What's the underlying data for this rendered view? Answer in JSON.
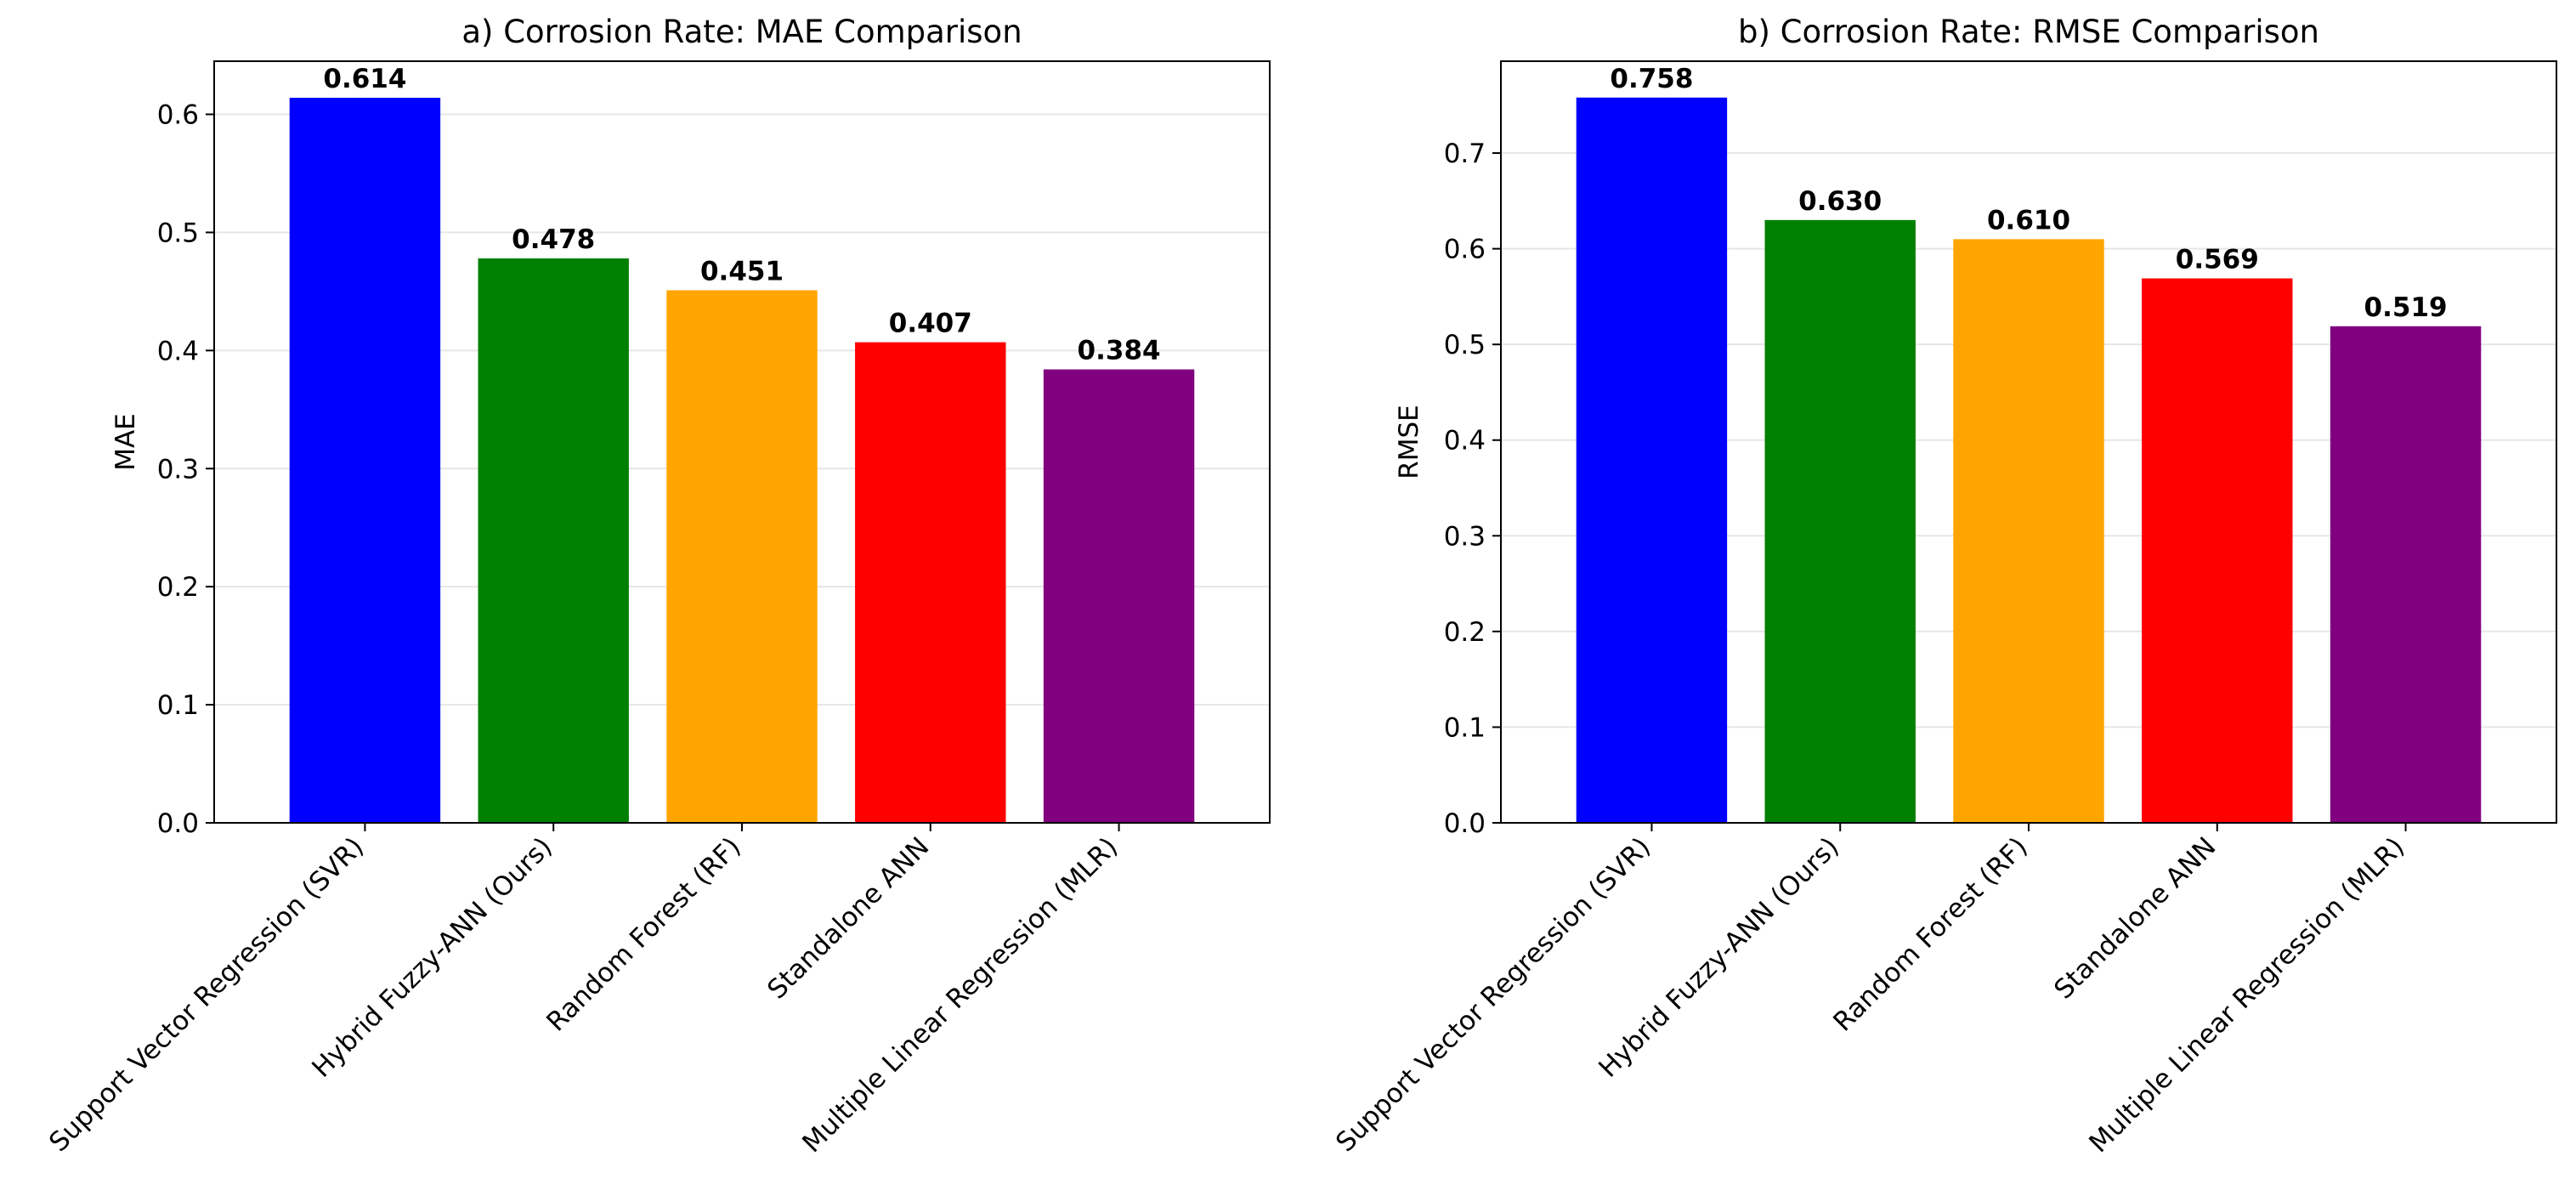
{
  "chart_data": [
    {
      "type": "bar",
      "title": "a) Corrosion Rate: MAE Comparison",
      "xlabel": "",
      "ylabel": "MAE",
      "ylim": [
        0,
        0.645
      ],
      "yticks": [
        0.0,
        0.1,
        0.2,
        0.3,
        0.4,
        0.5,
        0.6
      ],
      "ytick_labels": [
        "0.0",
        "0.1",
        "0.2",
        "0.3",
        "0.4",
        "0.5",
        "0.6"
      ],
      "grid": "y",
      "categories": [
        "Support Vector Regression (SVR)",
        "Hybrid Fuzzy-ANN (Ours)",
        "Random Forest (RF)",
        "Standalone ANN",
        "Multiple Linear Regression (MLR)"
      ],
      "values": [
        0.614,
        0.478,
        0.451,
        0.407,
        0.384
      ],
      "value_labels": [
        "0.614",
        "0.478",
        "0.451",
        "0.407",
        "0.384"
      ],
      "colors": [
        "#0000ff",
        "#008000",
        "#ffa500",
        "#ff0000",
        "#800080"
      ]
    },
    {
      "type": "bar",
      "title": "b) Corrosion Rate: RMSE Comparison",
      "xlabel": "",
      "ylabel": "RMSE",
      "ylim": [
        0,
        0.796
      ],
      "yticks": [
        0.0,
        0.1,
        0.2,
        0.3,
        0.4,
        0.5,
        0.6,
        0.7
      ],
      "ytick_labels": [
        "0.0",
        "0.1",
        "0.2",
        "0.3",
        "0.4",
        "0.5",
        "0.6",
        "0.7"
      ],
      "grid": "y",
      "categories": [
        "Support Vector Regression (SVR)",
        "Hybrid Fuzzy-ANN (Ours)",
        "Random Forest (RF)",
        "Standalone ANN",
        "Multiple Linear Regression (MLR)"
      ],
      "values": [
        0.758,
        0.63,
        0.61,
        0.569,
        0.519
      ],
      "value_labels": [
        "0.758",
        "0.630",
        "0.610",
        "0.569",
        "0.519"
      ],
      "colors": [
        "#0000ff",
        "#008000",
        "#ffa500",
        "#ff0000",
        "#800080"
      ]
    }
  ]
}
